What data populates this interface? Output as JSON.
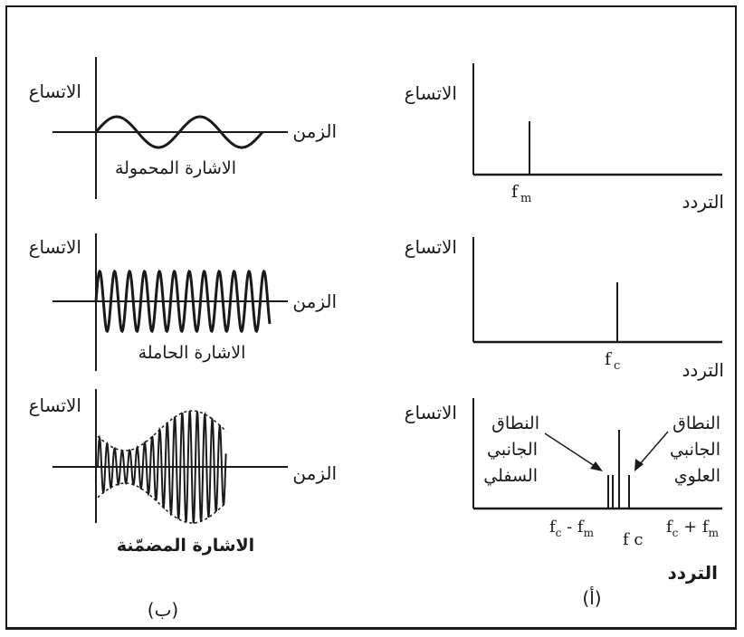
{
  "labels": {
    "amplitude": "الاتساع",
    "time": "الزمن",
    "frequency": "التردد",
    "modulating_signal": "الاشارة المحمولة",
    "carrier_signal": "الاشارة الحاملة",
    "modulated_signal": "الاشارة المضمّنة",
    "lower_sideband": [
      "النطاق",
      "الجانبي",
      "السفلي"
    ],
    "upper_sideband": [
      "النطاق",
      "الجانبي",
      "العلوي"
    ],
    "label_a": "(أ)",
    "label_b": "(ب)"
  },
  "frequency_marks": {
    "fm": "f",
    "fm_sub": "m",
    "fc": "f",
    "fc_sub": "c",
    "fc_minus_fm": [
      "f",
      "c",
      " - f",
      "m"
    ],
    "fc_center": "f c",
    "fc_plus_fm": [
      "f",
      "c",
      " + f",
      "m"
    ]
  },
  "colors": {
    "ink": "#1a1a1a",
    "background": "#ffffff"
  }
}
